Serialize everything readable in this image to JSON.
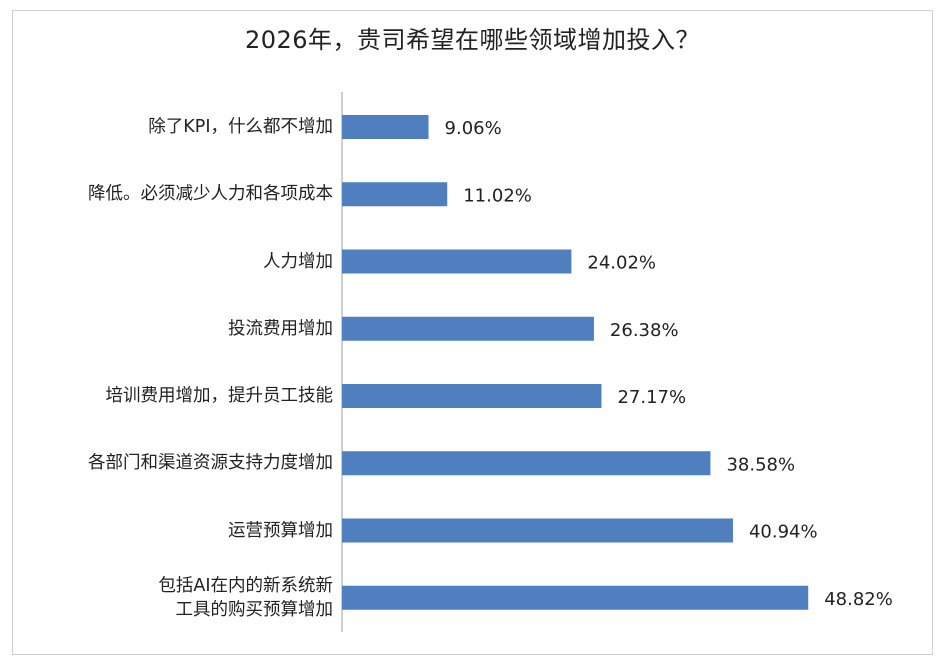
{
  "chart_data": {
    "type": "bar",
    "orientation": "horizontal",
    "title": "2026年，贵司希望在哪些领域增加投入？",
    "xlabel": "",
    "ylabel": "",
    "categories": [
      [
        "除了KPI，什么都不增加"
      ],
      [
        "降低。必须减少人力和各项成本"
      ],
      [
        "人力增加"
      ],
      [
        "投流费用增加"
      ],
      [
        "培训费用增加，提升员工技能"
      ],
      [
        "各部门和渠道资源支持力度增加"
      ],
      [
        "运营预算增加"
      ],
      [
        "包括AI在内的新系统新",
        "工具的购买预算增加"
      ]
    ],
    "values": [
      9.06,
      11.02,
      24.02,
      26.38,
      27.17,
      38.58,
      40.94,
      48.82
    ],
    "value_labels": [
      "9.06%",
      "11.02%",
      "24.02%",
      "26.38%",
      "27.17%",
      "38.58%",
      "40.94%",
      "48.82%"
    ],
    "xlim": [
      0,
      100
    ],
    "grid": false,
    "legend": "none",
    "bar_color": "#4f7fbf",
    "axis_color": "#bfbfbf"
  }
}
